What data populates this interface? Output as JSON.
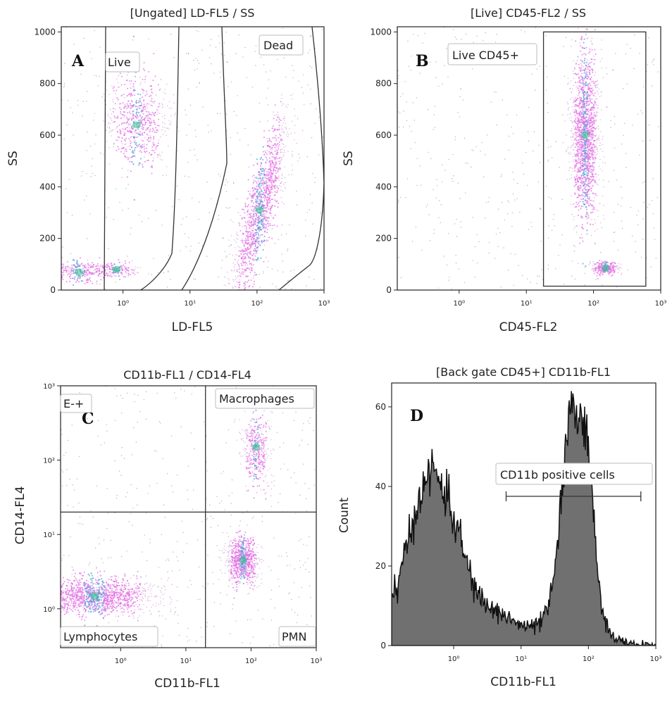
{
  "chart_data": [
    {
      "panel": "A",
      "type": "scatter",
      "subtype": "flow-cytometry density plot",
      "title": "[Ungated] LD-FL5 / SS",
      "xlabel": "LD-FL5",
      "ylabel": "SS",
      "xscale": "log",
      "xticks": [
        "10⁰",
        "10¹",
        "10²",
        "10³"
      ],
      "yticks": [
        "0",
        "200",
        "400",
        "600",
        "800",
        "1000"
      ],
      "xlim": [
        0.12,
        1000
      ],
      "ylim": [
        0,
        1020
      ],
      "gates": [
        {
          "label": "Live",
          "x_range": [
            0.5,
            5
          ],
          "y_range": [
            0,
            1000
          ]
        },
        {
          "label": "Dead",
          "x_range": [
            10,
            1000
          ],
          "y_range": [
            0,
            1000
          ]
        }
      ],
      "populations": [
        {
          "x": 0.22,
          "y": 70,
          "spread_x": 0.25,
          "spread_y": 20,
          "n": 260
        },
        {
          "x": 0.8,
          "y": 80,
          "spread_x": 0.16,
          "spread_y": 14,
          "n": 160
        },
        {
          "x": 1.6,
          "y": 640,
          "spread_x": 0.22,
          "spread_y": 90,
          "n": 600
        },
        {
          "x": 110,
          "y": 310,
          "spread_x": 0.2,
          "spread_y": 95,
          "n": 1300
        }
      ]
    },
    {
      "panel": "B",
      "type": "scatter",
      "subtype": "flow-cytometry density plot",
      "title": "[Live] CD45-FL2 / SS",
      "xlabel": "CD45-FL2",
      "ylabel": "SS",
      "xscale": "log",
      "xticks": [
        "10⁰",
        "10¹",
        "10²",
        "10³"
      ],
      "yticks": [
        "0",
        "200",
        "400",
        "600",
        "800",
        "1000"
      ],
      "xlim": [
        0.12,
        1000
      ],
      "ylim": [
        0,
        1020
      ],
      "gates": [
        {
          "label": "Live CD45+",
          "x_range": [
            18,
            600
          ],
          "y_range": [
            15,
            1000
          ]
        }
      ],
      "populations": [
        {
          "x": 75,
          "y": 600,
          "spread_x": 0.1,
          "spread_y": 150,
          "n": 1600
        },
        {
          "x": 150,
          "y": 85,
          "spread_x": 0.1,
          "spread_y": 12,
          "n": 260
        }
      ]
    },
    {
      "panel": "C",
      "type": "scatter",
      "subtype": "flow-cytometry quadrant plot",
      "title": "CD11b-FL1 / CD14-FL4",
      "xlabel": "CD11b-FL1",
      "ylabel": "CD14-FL4",
      "xscale": "log",
      "yscale": "log",
      "xticks": [
        "10⁰",
        "10¹",
        "10²",
        "10³"
      ],
      "yticks": [
        "10⁰",
        "10¹",
        "10²",
        "10³"
      ],
      "xlim": [
        0.12,
        1000
      ],
      "ylim": [
        0.3,
        1000
      ],
      "quadrant_split": {
        "x": 20,
        "y": 20
      },
      "quadrant_labels": {
        "top_left": "E-+",
        "top_right": "Macrophages",
        "bottom_left": "Lymphocytes",
        "bottom_right": "PMN"
      },
      "populations": [
        {
          "x": 0.4,
          "y": 1.5,
          "spread_x": 0.45,
          "spread_y": 0.12,
          "n": 1400
        },
        {
          "x": 75,
          "y": 4.5,
          "spread_x": 0.12,
          "spread_y": 0.15,
          "n": 800
        },
        {
          "x": 120,
          "y": 150,
          "spread_x": 0.1,
          "spread_y": 0.25,
          "n": 380
        }
      ]
    },
    {
      "panel": "D",
      "type": "area",
      "subtype": "histogram",
      "title": "[Back gate CD45+] CD11b-FL1",
      "xlabel": "CD11b-FL1",
      "ylabel": "Count",
      "xscale": "log",
      "xticks": [
        "10⁰",
        "10¹",
        "10²",
        "10³"
      ],
      "yticks": [
        "0",
        "20",
        "40",
        "60"
      ],
      "xlim": [
        0.12,
        1000
      ],
      "ylim": [
        0,
        66
      ],
      "marker": {
        "label": "CD11b positive cells",
        "x_range": [
          6,
          600
        ]
      },
      "series": [
        {
          "x": [
            0.12,
            0.15,
            0.2,
            0.25,
            0.3,
            0.4,
            0.5,
            0.6,
            0.8,
            1,
            1.3,
            1.6,
            2,
            2.5,
            3,
            4,
            5,
            6,
            8,
            10,
            13,
            16,
            20,
            25,
            30,
            35,
            40,
            50,
            60,
            70,
            80,
            90,
            100,
            120,
            140,
            160,
            200,
            250,
            300,
            400,
            500,
            600,
            800,
            1000
          ],
          "values": [
            13,
            16,
            24,
            31,
            37,
            42,
            44,
            42,
            37,
            32,
            26,
            20,
            15,
            12,
            10,
            9,
            8,
            7.5,
            6,
            5,
            4.5,
            5,
            6,
            9,
            16,
            26,
            38,
            54,
            60,
            60,
            58,
            55,
            48,
            32,
            18,
            9,
            4,
            2,
            1,
            0.5,
            0.3,
            0.2,
            0.1,
            0
          ]
        }
      ]
    }
  ]
}
